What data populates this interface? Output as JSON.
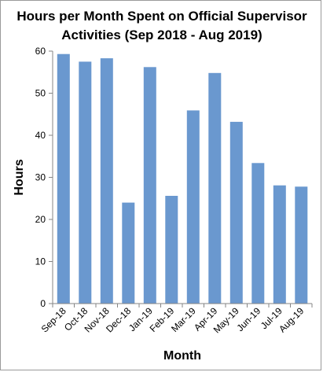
{
  "chart_data": {
    "type": "bar",
    "title_line1": "Hours per Month Spent on Official Supervisor",
    "title_line2": "Activities (Sep 2018 - Aug 2019)",
    "xlabel": "Month",
    "ylabel": "Hours",
    "categories": [
      "Sep-18",
      "Oct-18",
      "Nov-18",
      "Dec-18",
      "Jan-19",
      "Feb-19",
      "Mar-19",
      "Apr-19",
      "May-19",
      "Jun-19",
      "Jul-19",
      "Aug-19"
    ],
    "values": [
      59.3,
      57.5,
      58.3,
      24.0,
      56.2,
      25.6,
      45.9,
      54.8,
      43.2,
      33.4,
      28.1,
      27.8
    ],
    "ylim": [
      0,
      60
    ],
    "yticks": [
      "0",
      "10",
      "20",
      "30",
      "40",
      "50",
      "60"
    ],
    "grid": false,
    "legend": "none",
    "bar_color": "#6a98cf",
    "axis_color": "#858585"
  }
}
